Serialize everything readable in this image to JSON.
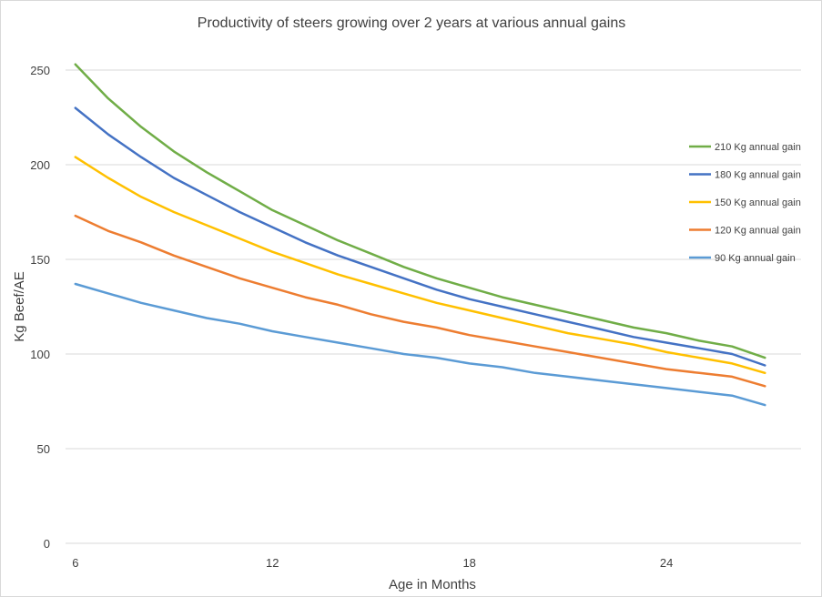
{
  "chart_data": {
    "type": "line",
    "title": "Productivity of steers growing over 2 years at various annual gains",
    "xlabel": "Age in Months",
    "ylabel": "Kg Beef/AE",
    "x": [
      6,
      7,
      8,
      9,
      10,
      11,
      12,
      13,
      14,
      15,
      16,
      17,
      18,
      19,
      20,
      21,
      22,
      23,
      24,
      25,
      26,
      27
    ],
    "xlim": [
      5.7,
      28.1
    ],
    "ylim": [
      0,
      262
    ],
    "xticks": [
      6,
      12,
      18,
      24
    ],
    "yticks": [
      0,
      50,
      100,
      150,
      200,
      250
    ],
    "grid": "horizontal",
    "legend_position": "right",
    "series": [
      {
        "name": "210 Kg annual gain",
        "color": "#70ad47",
        "values": [
          253,
          235,
          220,
          207,
          196,
          186,
          176,
          168,
          160,
          153,
          146,
          140,
          135,
          130,
          126,
          122,
          118,
          114,
          111,
          107,
          104,
          98
        ]
      },
      {
        "name": "180 Kg annual gain",
        "color": "#4472c4",
        "values": [
          230,
          216,
          204,
          193,
          184,
          175,
          167,
          159,
          152,
          146,
          140,
          134,
          129,
          125,
          121,
          117,
          113,
          109,
          106,
          103,
          100,
          94
        ]
      },
      {
        "name": "150 Kg annual gain",
        "color": "#ffc000",
        "values": [
          204,
          193,
          183,
          175,
          168,
          161,
          154,
          148,
          142,
          137,
          132,
          127,
          123,
          119,
          115,
          111,
          108,
          105,
          101,
          98,
          95,
          90
        ]
      },
      {
        "name": "120 Kg annual gain",
        "color": "#ed7d31",
        "values": [
          173,
          165,
          159,
          152,
          146,
          140,
          135,
          130,
          126,
          121,
          117,
          114,
          110,
          107,
          104,
          101,
          98,
          95,
          92,
          90,
          88,
          83
        ]
      },
      {
        "name": "90 Kg annual gain",
        "color": "#5b9bd5",
        "values": [
          137,
          132,
          127,
          123,
          119,
          116,
          112,
          109,
          106,
          103,
          100,
          98,
          95,
          93,
          90,
          88,
          86,
          84,
          82,
          80,
          78,
          73
        ]
      }
    ]
  }
}
